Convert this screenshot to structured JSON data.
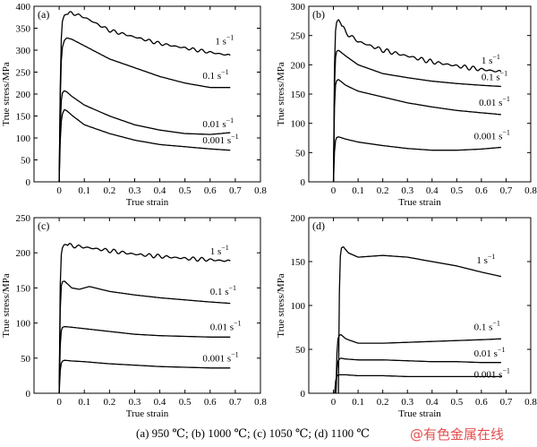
{
  "caption": "(a) 950 ℃; (b) 1000 ℃; (c) 1050 ℃; (d) 1100 ℃",
  "watermark": "@有色金属在线",
  "colors": {
    "axis": "#000000",
    "line": "#000000",
    "watermark": "#e23b3b"
  },
  "chart_data": [
    {
      "type": "line",
      "panel_label": "(a)",
      "xlabel": "True strain",
      "ylabel": "True stress/MPa",
      "xlim": [
        -0.1,
        0.8
      ],
      "ylim": [
        0,
        400
      ],
      "xticks": [
        0,
        0.1,
        0.2,
        0.3,
        0.4,
        0.5,
        0.6,
        0.7,
        0.8
      ],
      "yticks": [
        0,
        50,
        100,
        150,
        200,
        250,
        300,
        350,
        400
      ],
      "series": [
        {
          "name": "1 s⁻¹",
          "label_main": "1 s",
          "label_sup": "−1",
          "wavy": 4,
          "x": [
            0,
            0.005,
            0.01,
            0.02,
            0.05,
            0.1,
            0.2,
            0.3,
            0.4,
            0.5,
            0.6,
            0.68
          ],
          "y": [
            0,
            250,
            360,
            380,
            385,
            375,
            345,
            330,
            315,
            305,
            295,
            288
          ],
          "label_at": [
            0.62,
            313
          ]
        },
        {
          "name": "0.1 s⁻¹",
          "label_main": "0.1 s",
          "label_sup": "−1",
          "wavy": 0,
          "x": [
            0,
            0.005,
            0.01,
            0.02,
            0.03,
            0.05,
            0.1,
            0.2,
            0.3,
            0.4,
            0.5,
            0.6,
            0.68
          ],
          "y": [
            0,
            220,
            300,
            322,
            328,
            325,
            310,
            280,
            260,
            240,
            225,
            215,
            215
          ],
          "label_at": [
            0.57,
            235
          ]
        },
        {
          "name": "0.01 s⁻¹",
          "label_main": "0.01 s",
          "label_sup": "−1",
          "wavy": 0,
          "x": [
            0,
            0.005,
            0.01,
            0.02,
            0.03,
            0.05,
            0.1,
            0.2,
            0.3,
            0.4,
            0.5,
            0.6,
            0.68
          ],
          "y": [
            0,
            150,
            200,
            208,
            205,
            195,
            175,
            150,
            130,
            118,
            110,
            108,
            112
          ],
          "label_at": [
            0.57,
            125
          ]
        },
        {
          "name": "0.001 s⁻¹",
          "label_main": "0.001 s",
          "label_sup": "−1",
          "wavy": 0,
          "x": [
            0,
            0.005,
            0.01,
            0.02,
            0.03,
            0.05,
            0.1,
            0.2,
            0.3,
            0.4,
            0.5,
            0.6,
            0.68
          ],
          "y": [
            0,
            110,
            150,
            165,
            162,
            152,
            130,
            110,
            95,
            85,
            80,
            75,
            72
          ],
          "label_at": [
            0.57,
            88
          ]
        }
      ]
    },
    {
      "type": "line",
      "panel_label": "(b)",
      "xlabel": "True strain",
      "ylabel": "True stress/MPa",
      "xlim": [
        -0.1,
        0.8
      ],
      "ylim": [
        0,
        300
      ],
      "xticks": [
        0,
        0.1,
        0.2,
        0.3,
        0.4,
        0.5,
        0.6,
        0.7,
        0.8
      ],
      "yticks": [
        0,
        50,
        100,
        150,
        200,
        250,
        300
      ],
      "series": [
        {
          "name": "1 s⁻¹",
          "label_main": "1 s",
          "label_sup": "−1",
          "wavy": 4,
          "x": [
            0,
            0.005,
            0.01,
            0.02,
            0.03,
            0.05,
            0.1,
            0.2,
            0.3,
            0.4,
            0.5,
            0.6,
            0.68
          ],
          "y": [
            0,
            230,
            270,
            278,
            270,
            255,
            240,
            225,
            215,
            205,
            198,
            192,
            188
          ],
          "label_at": [
            0.6,
            202
          ]
        },
        {
          "name": "0.1 s⁻¹",
          "label_main": "0.1 s",
          "label_sup": "−1",
          "wavy": 0,
          "x": [
            0,
            0.005,
            0.01,
            0.02,
            0.05,
            0.1,
            0.2,
            0.3,
            0.4,
            0.5,
            0.6,
            0.68
          ],
          "y": [
            0,
            190,
            222,
            225,
            215,
            200,
            185,
            178,
            172,
            168,
            165,
            163
          ],
          "label_at": [
            0.6,
            174
          ]
        },
        {
          "name": "0.01 s⁻¹",
          "label_main": "0.01 s",
          "label_sup": "−1",
          "wavy": 0,
          "x": [
            0,
            0.005,
            0.01,
            0.02,
            0.05,
            0.1,
            0.2,
            0.3,
            0.4,
            0.5,
            0.6,
            0.68
          ],
          "y": [
            0,
            150,
            172,
            175,
            165,
            155,
            145,
            135,
            128,
            122,
            118,
            115
          ],
          "label_at": [
            0.59,
            130
          ]
        },
        {
          "name": "0.001 s⁻¹",
          "label_main": "0.001 s",
          "label_sup": "−1",
          "wavy": 0,
          "x": [
            0,
            0.005,
            0.01,
            0.02,
            0.05,
            0.1,
            0.2,
            0.3,
            0.4,
            0.5,
            0.6,
            0.68
          ],
          "y": [
            0,
            60,
            75,
            77,
            73,
            68,
            62,
            57,
            54,
            54,
            56,
            59
          ],
          "label_at": [
            0.57,
            73
          ]
        }
      ]
    },
    {
      "type": "line",
      "panel_label": "(c)",
      "xlabel": "True strain",
      "ylabel": "True stress/MPa",
      "xlim": [
        -0.1,
        0.8
      ],
      "ylim": [
        0,
        250
      ],
      "xticks": [
        0,
        0.1,
        0.2,
        0.3,
        0.4,
        0.5,
        0.6,
        0.7,
        0.8
      ],
      "yticks": [
        0,
        50,
        100,
        150,
        200,
        250
      ],
      "series": [
        {
          "name": "1 s⁻¹",
          "label_main": "1 s",
          "label_sup": "−1",
          "wavy": 3,
          "x": [
            0,
            0.005,
            0.01,
            0.02,
            0.05,
            0.1,
            0.2,
            0.3,
            0.4,
            0.5,
            0.6,
            0.68
          ],
          "y": [
            0,
            180,
            205,
            212,
            210,
            208,
            203,
            198,
            195,
            192,
            190,
            188
          ],
          "label_at": [
            0.6,
            198
          ]
        },
        {
          "name": "0.1 s⁻¹",
          "label_main": "0.1 s",
          "label_sup": "−1",
          "wavy": 0,
          "x": [
            0,
            0.005,
            0.01,
            0.02,
            0.05,
            0.08,
            0.12,
            0.2,
            0.3,
            0.4,
            0.5,
            0.6,
            0.68
          ],
          "y": [
            0,
            140,
            158,
            160,
            150,
            148,
            152,
            145,
            140,
            136,
            133,
            130,
            128
          ],
          "label_at": [
            0.6,
            140
          ]
        },
        {
          "name": "0.01 s⁻¹",
          "label_main": "0.01 s",
          "label_sup": "−1",
          "wavy": 0,
          "x": [
            0,
            0.005,
            0.01,
            0.02,
            0.05,
            0.1,
            0.2,
            0.3,
            0.4,
            0.5,
            0.6,
            0.68
          ],
          "y": [
            0,
            80,
            93,
            95,
            94,
            92,
            88,
            84,
            82,
            81,
            80,
            80
          ],
          "label_at": [
            0.6,
            90
          ]
        },
        {
          "name": "0.001 s⁻¹",
          "label_main": "0.001 s",
          "label_sup": "−1",
          "wavy": 0,
          "x": [
            0,
            0.005,
            0.01,
            0.02,
            0.05,
            0.1,
            0.2,
            0.3,
            0.4,
            0.5,
            0.6,
            0.68
          ],
          "y": [
            0,
            38,
            45,
            47,
            46,
            45,
            42,
            40,
            38,
            37,
            36,
            36
          ],
          "label_at": [
            0.57,
            45
          ]
        }
      ]
    },
    {
      "type": "line",
      "panel_label": "(d)",
      "xlabel": "True strain",
      "ylabel": "True stress/MPa",
      "xlim": [
        -0.1,
        0.8
      ],
      "ylim": [
        0,
        200
      ],
      "xticks": [
        0,
        0.1,
        0.2,
        0.3,
        0.4,
        0.5,
        0.6,
        0.7,
        0.8
      ],
      "yticks": [
        0,
        50,
        100,
        150,
        200
      ],
      "series": [
        {
          "name": "1 s⁻¹",
          "label_main": "1 s",
          "label_sup": "−1",
          "wavy": 0,
          "x": [
            0.02,
            0.025,
            0.03,
            0.04,
            0.06,
            0.1,
            0.2,
            0.3,
            0.4,
            0.5,
            0.6,
            0.68
          ],
          "y": [
            0,
            140,
            165,
            167,
            160,
            155,
            157,
            155,
            150,
            145,
            138,
            133
          ],
          "label_at": [
            0.58,
            148
          ]
        },
        {
          "name": "0.1 s⁻¹",
          "label_main": "0.1 s",
          "label_sup": "−1",
          "wavy": 0,
          "x": [
            0.01,
            0.015,
            0.02,
            0.03,
            0.05,
            0.1,
            0.2,
            0.3,
            0.4,
            0.5,
            0.6,
            0.68
          ],
          "y": [
            0,
            55,
            65,
            67,
            62,
            57,
            57,
            58,
            59,
            60,
            61,
            62
          ],
          "label_at": [
            0.57,
            72
          ]
        },
        {
          "name": "0.01 s⁻¹",
          "label_main": "0.01 s",
          "label_sup": "−1",
          "wavy": 0,
          "x": [
            0.01,
            0.015,
            0.02,
            0.03,
            0.05,
            0.1,
            0.2,
            0.3,
            0.4,
            0.5,
            0.6,
            0.68
          ],
          "y": [
            0,
            33,
            38,
            40,
            39,
            38,
            38,
            37,
            36,
            36,
            35,
            35
          ],
          "label_at": [
            0.57,
            42
          ]
        },
        {
          "name": "0.001 s⁻¹",
          "label_main": "0.001 s",
          "label_sup": "−1",
          "wavy": 0,
          "x": [
            0.005,
            0.01,
            0.015,
            0.02,
            0.05,
            0.1,
            0.2,
            0.3,
            0.4,
            0.5,
            0.6,
            0.68
          ],
          "y": [
            0,
            17,
            20,
            21,
            21,
            20,
            20,
            19,
            19,
            19,
            19,
            19
          ],
          "label_at": [
            0.57,
            18
          ]
        }
      ]
    }
  ]
}
